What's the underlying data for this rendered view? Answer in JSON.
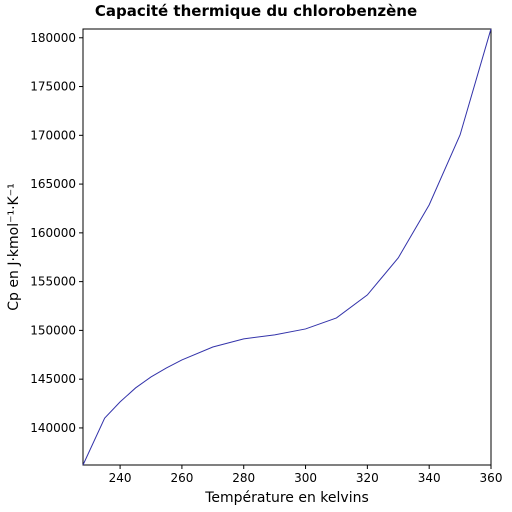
{
  "chart_data": {
    "type": "line",
    "title": "Capacité thermique du chlorobenzène",
    "x_label": "Température en kelvins",
    "y_label": "Cp en J·kmol⁻¹·K⁻¹",
    "x": [
      228,
      235,
      240,
      245,
      250,
      255,
      260,
      270,
      280,
      290,
      300,
      310,
      320,
      330,
      340,
      350,
      360
    ],
    "series": [
      {
        "color": "#3333aa",
        "values": [
          136200,
          141000,
          142670,
          144100,
          145230,
          146150,
          146970,
          148300,
          149130,
          149540,
          150150,
          151280,
          153640,
          157440,
          162870,
          170050,
          180920
        ]
      }
    ],
    "xlim": [
      228,
      360
    ],
    "ylim": [
      136200,
      180900
    ],
    "xticks": [
      240,
      260,
      280,
      300,
      320,
      340,
      360
    ],
    "yticks": [
      140000,
      145000,
      150000,
      155000,
      160000,
      165000,
      170000,
      175000,
      180000
    ]
  }
}
